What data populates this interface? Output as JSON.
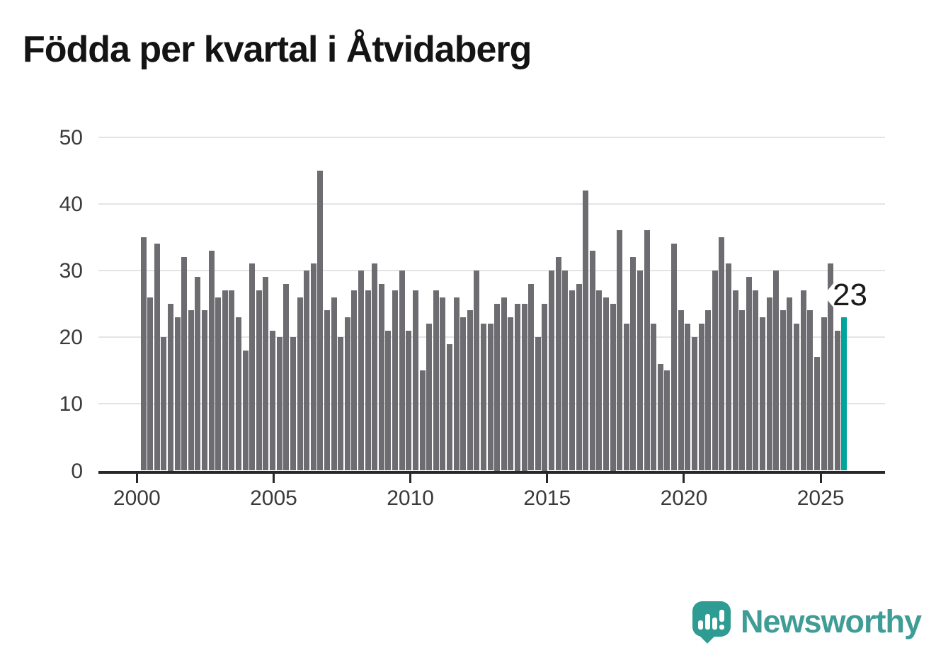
{
  "title": "Födda per kvartal i Åtvidaberg",
  "y_axis": {
    "tick_labels": [
      "0",
      "10",
      "20",
      "30",
      "40",
      "50"
    ]
  },
  "x_axis": {
    "tick_labels": [
      "2000",
      "2005",
      "2010",
      "2015",
      "2020",
      "2025"
    ]
  },
  "chart_data": {
    "type": "bar",
    "title": "Födda per kvartal i Åtvidaberg",
    "frequency": "quarterly",
    "start_period": "2000 Q1",
    "end_period": "2025 Q4",
    "ylabel": "",
    "xlabel": "",
    "ylim": [
      0,
      50
    ],
    "grid": "horizontal",
    "values": [
      35,
      26,
      34,
      20,
      25,
      23,
      32,
      24,
      29,
      24,
      33,
      26,
      27,
      27,
      23,
      18,
      31,
      27,
      29,
      21,
      20,
      28,
      20,
      26,
      30,
      31,
      45,
      24,
      26,
      20,
      23,
      27,
      30,
      27,
      31,
      28,
      21,
      27,
      30,
      21,
      27,
      15,
      22,
      27,
      26,
      19,
      26,
      23,
      24,
      30,
      22,
      22,
      25,
      26,
      23,
      25,
      25,
      28,
      20,
      25,
      30,
      32,
      30,
      27,
      28,
      42,
      33,
      27,
      26,
      25,
      36,
      22,
      32,
      30,
      36,
      22,
      16,
      15,
      34,
      24,
      22,
      20,
      22,
      24,
      30,
      35,
      31,
      27,
      24,
      29,
      27,
      23,
      26,
      30,
      24,
      26,
      22,
      27,
      24,
      17,
      23,
      31,
      21,
      23
    ],
    "series_by_year": {
      "2000": [
        35,
        26,
        34,
        20
      ],
      "2001": [
        25,
        23,
        32,
        24
      ],
      "2002": [
        29,
        24,
        33,
        26
      ],
      "2003": [
        27,
        27,
        23,
        18
      ],
      "2004": [
        31,
        27,
        29,
        21
      ],
      "2005": [
        20,
        28,
        20,
        26
      ],
      "2006": [
        30,
        31,
        45,
        24
      ],
      "2007": [
        26,
        20,
        23,
        27
      ],
      "2008": [
        30,
        27,
        31,
        28
      ],
      "2009": [
        21,
        27,
        30,
        21
      ],
      "2010": [
        27,
        15,
        22,
        27
      ],
      "2011": [
        26,
        19,
        26,
        23
      ],
      "2012": [
        24,
        30,
        22,
        22
      ],
      "2013": [
        25,
        26,
        23,
        25
      ],
      "2014": [
        25,
        28,
        20,
        25
      ],
      "2015": [
        30,
        32,
        30,
        27
      ],
      "2016": [
        28,
        42,
        33,
        27
      ],
      "2017": [
        26,
        25,
        36,
        22
      ],
      "2018": [
        32,
        30,
        36,
        22
      ],
      "2019": [
        16,
        15,
        34,
        24
      ],
      "2020": [
        22,
        20,
        22,
        24
      ],
      "2021": [
        30,
        35,
        31,
        27
      ],
      "2022": [
        24,
        29,
        27,
        23
      ],
      "2023": [
        26,
        30,
        24,
        26
      ],
      "2024": [
        22,
        27,
        24,
        17
      ],
      "2025": [
        23,
        31,
        21,
        23
      ]
    },
    "highlight": {
      "index": 103,
      "period": "2025 Q4",
      "value": 23,
      "color": "#00a49b"
    },
    "annotation": {
      "label": "23",
      "points_to": "latest-bar"
    }
  },
  "colors": {
    "bar": "#6c6c71",
    "highlight": "#00a49b",
    "gridline": "#e4e4e4",
    "axis": "#28282c",
    "tick_label": "#3a3a3a",
    "title": "#141414",
    "logo": "#2e9c93",
    "logo_text": "#3f9d96"
  },
  "logo": {
    "text": "Newsworthy"
  }
}
